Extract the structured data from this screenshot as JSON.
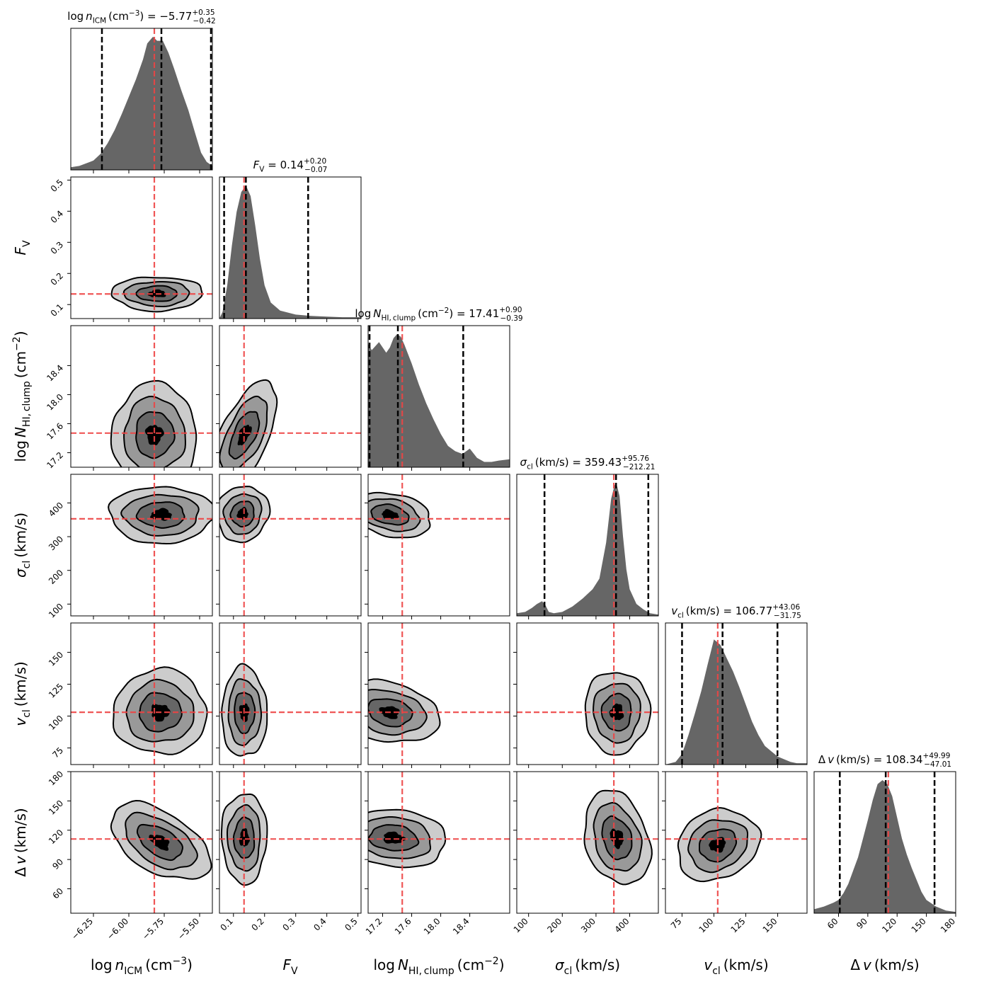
{
  "chart_data": {
    "type": "corner",
    "parameters": [
      {
        "key": "lognICM",
        "label": "log n_ICM (cm^-3)",
        "axis_label_main": "log n",
        "axis_label_sub": "ICM",
        "axis_label_unit": " (cm",
        "axis_label_sup": "−3",
        "axis_label_close": ")",
        "title_main": "log n",
        "title_sub": "ICM",
        "title_unit": " (cm",
        "title_unit_sup": "−3",
        "title_close": ") = −5.77",
        "title_plus": "+0.35",
        "title_minus": "−0.42",
        "median": -5.77,
        "err_plus": 0.35,
        "err_minus": 0.42,
        "truth": -5.82,
        "range": [
          -6.41,
          -5.41
        ],
        "ticks": [
          -6.25,
          -6.0,
          -5.75,
          -5.5
        ],
        "tick_labels": [
          "−6.25",
          "−6.00",
          "−5.75",
          "−5.50"
        ]
      },
      {
        "key": "FV",
        "label": "F_V",
        "axis_label_main": "F",
        "axis_label_sub": "V",
        "axis_label_unit": "",
        "axis_label_sup": "",
        "axis_label_close": "",
        "title_main": "F",
        "title_sub": "V",
        "title_unit": "",
        "title_unit_sup": "",
        "title_close": " = 0.14",
        "title_plus": "+0.20",
        "title_minus": "−0.07",
        "median": 0.14,
        "err_plus": 0.2,
        "err_minus": 0.07,
        "truth": 0.134,
        "range": [
          0.055,
          0.51
        ],
        "ticks": [
          0.1,
          0.2,
          0.3,
          0.4,
          0.5
        ],
        "tick_labels": [
          "0.1",
          "0.2",
          "0.3",
          "0.4",
          "0.5"
        ]
      },
      {
        "key": "logNHI",
        "label": "log N_HI,clump (cm^-2)",
        "axis_label_main": "log N",
        "axis_label_sub": "HI, clump",
        "axis_label_unit": " (cm",
        "axis_label_sup": "−2",
        "axis_label_close": ")",
        "title_main": "log N",
        "title_sub": "HI, clump",
        "title_unit": " (cm",
        "title_unit_sup": "−2",
        "title_close": ") = 17.41",
        "title_plus": "+0.90",
        "title_minus": "−0.39",
        "median": 17.41,
        "err_plus": 0.9,
        "err_minus": 0.39,
        "truth": 17.47,
        "range": [
          17.0,
          18.95
        ],
        "ticks": [
          17.2,
          17.6,
          18.0,
          18.4
        ],
        "tick_labels": [
          "17.2",
          "17.6",
          "18.0",
          "18.4"
        ]
      },
      {
        "key": "sigma_cl",
        "label": "sigma_cl (km/s)",
        "axis_label_main": "σ",
        "axis_label_sub": "cl",
        "axis_label_unit": " (km/s)",
        "axis_label_sup": "",
        "axis_label_close": "",
        "title_main": "σ",
        "title_sub": "cl",
        "title_unit": " (km/s)",
        "title_unit_sup": "",
        "title_close": " = 359.43",
        "title_plus": "+95.76",
        "title_minus": "−212.21",
        "median": 359.43,
        "err_plus": 95.76,
        "err_minus": 212.21,
        "truth": 353,
        "range": [
          65,
          485
        ],
        "ticks": [
          100,
          200,
          300,
          400
        ],
        "tick_labels": [
          "100",
          "200",
          "300",
          "400"
        ]
      },
      {
        "key": "v_cl",
        "label": "v_cl (km/s)",
        "axis_label_main": "v",
        "axis_label_sub": "cl",
        "axis_label_unit": " (km/s)",
        "axis_label_sup": "",
        "axis_label_close": "",
        "title_main": "v",
        "title_sub": "cl",
        "title_unit": " (km/s)",
        "title_unit_sup": "",
        "title_close": " = 106.77",
        "title_plus": "+43.06",
        "title_minus": "−31.75",
        "median": 106.77,
        "err_plus": 43.06,
        "err_minus": 31.75,
        "truth": 103,
        "range": [
          62,
          173
        ],
        "ticks": [
          75,
          100,
          125,
          150
        ],
        "tick_labels": [
          "75",
          "100",
          "125",
          "150"
        ]
      },
      {
        "key": "dv",
        "label": "Delta v (km/s)",
        "axis_label_main": "Δ v",
        "axis_label_sub": "",
        "axis_label_unit": " (km/s)",
        "axis_label_sup": "",
        "axis_label_close": "",
        "title_main": "Δ v",
        "title_sub": "",
        "title_unit": " (km/s)",
        "title_unit_sup": "",
        "title_close": " = 108.34",
        "title_plus": "+49.99",
        "title_minus": "−47.01",
        "median": 108.34,
        "err_plus": 49.99,
        "err_minus": 47.01,
        "truth": 111,
        "range": [
          35,
          180
        ],
        "ticks": [
          60,
          90,
          120,
          150,
          180
        ],
        "tick_labels": [
          "60",
          "90",
          "120",
          "150",
          "180"
        ]
      }
    ],
    "histograms": {
      "lognICM": {
        "x": [
          -6.41,
          -6.35,
          -6.3,
          -6.25,
          -6.2,
          -6.15,
          -6.1,
          -6.05,
          -6.0,
          -5.95,
          -5.9,
          -5.87,
          -5.83,
          -5.8,
          -5.76,
          -5.72,
          -5.68,
          -5.63,
          -5.58,
          -5.53,
          -5.49,
          -5.45,
          -5.41
        ],
        "y": [
          0.02,
          0.03,
          0.05,
          0.07,
          0.12,
          0.2,
          0.3,
          0.42,
          0.55,
          0.68,
          0.83,
          0.95,
          1.0,
          0.97,
          0.97,
          0.88,
          0.76,
          0.6,
          0.45,
          0.27,
          0.13,
          0.06,
          0.03
        ]
      },
      "FV": {
        "x": [
          0.055,
          0.065,
          0.08,
          0.095,
          0.11,
          0.125,
          0.14,
          0.155,
          0.17,
          0.185,
          0.2,
          0.22,
          0.25,
          0.3,
          0.35,
          0.4,
          0.45,
          0.51
        ],
        "y": [
          0.0,
          0.05,
          0.25,
          0.55,
          0.8,
          0.95,
          1.0,
          0.92,
          0.7,
          0.45,
          0.25,
          0.12,
          0.06,
          0.03,
          0.02,
          0.015,
          0.01,
          0.01
        ]
      },
      "logNHI": {
        "x": [
          17.0,
          17.05,
          17.1,
          17.15,
          17.2,
          17.25,
          17.3,
          17.35,
          17.4,
          17.45,
          17.5,
          17.6,
          17.7,
          17.8,
          17.9,
          18.0,
          18.1,
          18.2,
          18.3,
          18.4,
          18.5,
          18.6,
          18.7,
          18.8,
          18.95
        ],
        "y": [
          0.93,
          0.88,
          0.91,
          0.94,
          0.9,
          0.86,
          0.9,
          0.97,
          1.0,
          0.98,
          0.92,
          0.78,
          0.62,
          0.48,
          0.36,
          0.25,
          0.16,
          0.12,
          0.1,
          0.14,
          0.07,
          0.04,
          0.04,
          0.05,
          0.06
        ]
      },
      "sigma_cl": {
        "x": [
          65,
          90,
          110,
          125,
          140,
          150,
          160,
          175,
          200,
          230,
          260,
          290,
          310,
          330,
          345,
          355,
          360,
          370,
          380,
          390,
          400,
          420,
          440,
          460,
          485
        ],
        "y": [
          0.02,
          0.03,
          0.06,
          0.09,
          0.11,
          0.08,
          0.03,
          0.02,
          0.03,
          0.07,
          0.13,
          0.2,
          0.28,
          0.55,
          0.88,
          0.98,
          1.0,
          0.9,
          0.6,
          0.35,
          0.2,
          0.09,
          0.05,
          0.02,
          0.01
        ]
      },
      "v_cl": {
        "x": [
          62,
          70,
          75,
          80,
          85,
          90,
          95,
          100,
          105,
          110,
          115,
          120,
          125,
          130,
          135,
          140,
          145,
          150,
          155,
          160,
          165,
          173
        ],
        "y": [
          0.0,
          0.02,
          0.08,
          0.22,
          0.38,
          0.55,
          0.75,
          0.94,
          0.9,
          0.8,
          0.7,
          0.58,
          0.45,
          0.32,
          0.22,
          0.14,
          0.1,
          0.06,
          0.04,
          0.02,
          0.01,
          0.01
        ]
      },
      "dv": {
        "x": [
          35,
          45,
          55,
          60,
          65,
          70,
          75,
          80,
          85,
          90,
          95,
          100,
          105,
          110,
          115,
          120,
          125,
          130,
          135,
          140,
          145,
          150,
          160,
          170,
          180
        ],
        "y": [
          0.03,
          0.05,
          0.08,
          0.1,
          0.15,
          0.22,
          0.32,
          0.42,
          0.56,
          0.7,
          0.85,
          0.97,
          1.0,
          0.97,
          0.88,
          0.72,
          0.56,
          0.44,
          0.34,
          0.25,
          0.16,
          0.1,
          0.05,
          0.02,
          0.01
        ]
      }
    },
    "joint_centers": {
      "FV|lognICM": {
        "x": -5.8,
        "y": 0.135
      },
      "logNHI|lognICM": {
        "x": -5.82,
        "y": 17.45
      },
      "logNHI|FV": {
        "x": 0.135,
        "y": 17.45
      },
      "sigma_cl|lognICM": {
        "x": -5.77,
        "y": 365
      },
      "sigma_cl|FV": {
        "x": 0.13,
        "y": 368
      },
      "sigma_cl|logNHI": {
        "x": 17.3,
        "y": 365
      },
      "v_cl|lognICM": {
        "x": -5.78,
        "y": 103
      },
      "v_cl|FV": {
        "x": 0.135,
        "y": 103
      },
      "v_cl|logNHI": {
        "x": 17.3,
        "y": 103
      },
      "v_cl|sigma_cl": {
        "x": 362,
        "y": 103
      },
      "dv|lognICM": {
        "x": -5.78,
        "y": 108
      },
      "dv|FV": {
        "x": 0.135,
        "y": 112
      },
      "dv|logNHI": {
        "x": 17.35,
        "y": 112
      },
      "dv|sigma_cl": {
        "x": 362,
        "y": 112
      },
      "dv|v_cl": {
        "x": 103,
        "y": 105
      }
    },
    "contour_levels": [
      "0.5σ",
      "1σ",
      "1.5σ",
      "2σ"
    ],
    "colors": {
      "hist": "#666666",
      "truth": "#ee4444",
      "quantile": "#000000",
      "fills": [
        "#cccccc",
        "#999999",
        "#666666",
        "#000000"
      ]
    }
  }
}
